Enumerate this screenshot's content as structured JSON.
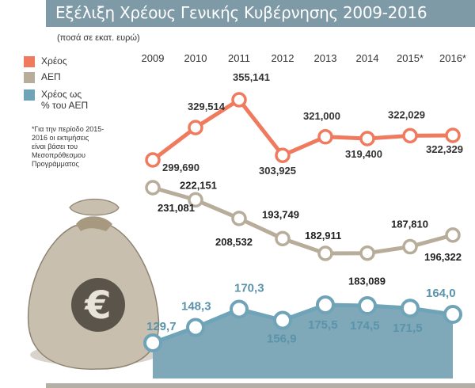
{
  "title": "Εξέλιξη Χρέους Γενικής Κυβέρνησης 2009-2016",
  "units": "(ποσά σε εκατ. ευρώ)",
  "note": "*Για την περίοδο 2015-2016 οι εκτιμήσεις είναι βάσει του Μεσοπρόθεσμου Προγράμματος",
  "colors": {
    "debt": "#f07a5e",
    "gdp": "#b8ad9a",
    "ratio": "#6fa3b8",
    "title_band": "#7f9aa7"
  },
  "chart_data": {
    "type": "line",
    "title": "Εξέλιξη Χρέους Γενικής Κυβέρνησης 2009-2016",
    "categories": [
      "2009",
      "2010",
      "2011",
      "2012",
      "2013",
      "2014",
      "2015*",
      "2016*"
    ],
    "series": [
      {
        "name": "Χρέος",
        "values": [
          299690,
          329514,
          355141,
          303925,
          321000,
          319400,
          322029,
          322329
        ],
        "labels": [
          "299,690",
          "329,514",
          "355,141",
          "303,925",
          "321,000",
          "319,400",
          "322,029",
          "322,329"
        ]
      },
      {
        "name": "ΑΕΠ",
        "values": [
          231081,
          222151,
          208532,
          193749,
          182911,
          183089,
          187810,
          196322
        ],
        "labels": [
          "231,081",
          "222,151",
          "208,532",
          "193,749",
          "182,911",
          "183,089",
          "187,810",
          "196,322"
        ]
      },
      {
        "name": "Χρέος ως % του ΑΕΠ",
        "values": [
          129.7,
          148.3,
          170.3,
          156.9,
          175.5,
          174.5,
          171.5,
          164.0
        ],
        "labels": [
          "129,7",
          "148,3",
          "170,3",
          "156,9",
          "175,5",
          "174,5",
          "171,5",
          "164,0"
        ]
      }
    ],
    "legend_position": "left",
    "grid": false
  }
}
